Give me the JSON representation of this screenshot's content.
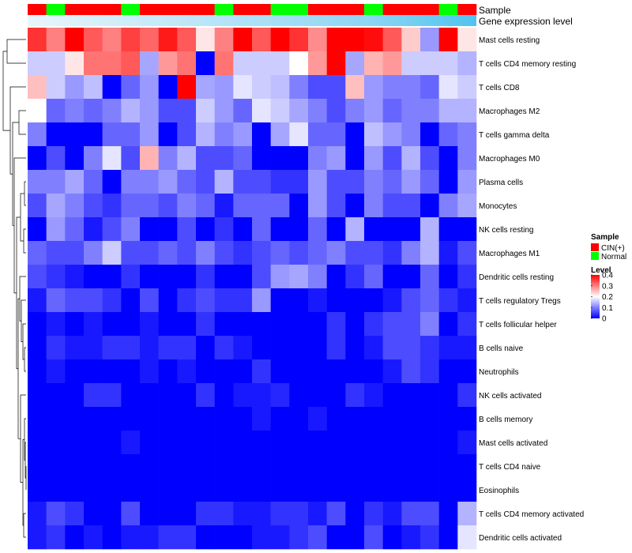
{
  "chart_data": {
    "type": "heatmap",
    "title": "",
    "annotation_rows": {
      "sample_label": "Sample",
      "expression_label": "Gene expression level",
      "sample_groups": [
        "CIN(+)",
        "Normal",
        "CIN(+)",
        "CIN(+)",
        "CIN(+)",
        "Normal",
        "CIN(+)",
        "CIN(+)",
        "CIN(+)",
        "CIN(+)",
        "Normal",
        "CIN(+)",
        "CIN(+)",
        "Normal",
        "Normal",
        "CIN(+)",
        "CIN(+)",
        "CIN(+)",
        "Normal",
        "CIN(+)",
        "CIN(+)",
        "CIN(+)",
        "Normal",
        "CIN(+)"
      ]
    },
    "rows": [
      "Mast cells resting",
      "T cells CD4 memory resting",
      "T cells CD8",
      "Macrophages M2",
      "T cells gamma delta",
      "Macrophages M0",
      "Plasma cells",
      "Monocytes",
      "NK cells resting",
      "Macrophages M1",
      "Dendritic cells resting",
      "T cells regulatory  Tregs",
      "T cells follicular helper",
      "B cells naive",
      "Neutrophils",
      "NK cells activated",
      "B cells memory",
      "Mast cells activated",
      "T cells CD4 naive",
      "Eosinophils",
      "T cells CD4 memory activated",
      "Dendritic cells activated"
    ],
    "values": [
      [
        0.36,
        0.3,
        0.4,
        0.33,
        0.3,
        0.35,
        0.32,
        0.38,
        0.33,
        0.22,
        0.3,
        0.4,
        0.33,
        0.4,
        0.36,
        0.29,
        0.4,
        0.4,
        0.39,
        0.33,
        0.24,
        0.12,
        0.4,
        0.22
      ],
      [
        0.16,
        0.16,
        0.22,
        0.31,
        0.31,
        0.33,
        0.13,
        0.28,
        0.31,
        0.0,
        0.31,
        0.16,
        0.16,
        0.16,
        0.2,
        0.28,
        0.4,
        0.13,
        0.26,
        0.28,
        0.16,
        0.16,
        0.16,
        0.14
      ],
      [
        0.25,
        0.16,
        0.12,
        0.15,
        0.0,
        0.08,
        0.12,
        0.0,
        0.4,
        0.13,
        0.12,
        0.18,
        0.16,
        0.15,
        0.1,
        0.06,
        0.06,
        0.25,
        0.12,
        0.1,
        0.1,
        0.08,
        0.18,
        0.16
      ],
      [
        0.2,
        0.08,
        0.1,
        0.08,
        0.1,
        0.14,
        0.12,
        0.06,
        0.06,
        0.16,
        0.12,
        0.08,
        0.18,
        0.16,
        0.13,
        0.1,
        0.06,
        0.1,
        0.12,
        0.08,
        0.1,
        0.1,
        0.14,
        0.14
      ],
      [
        0.1,
        0.0,
        0.0,
        0.0,
        0.08,
        0.08,
        0.12,
        0.0,
        0.06,
        0.14,
        0.1,
        0.12,
        0.0,
        0.13,
        0.18,
        0.08,
        0.08,
        0.0,
        0.15,
        0.12,
        0.1,
        0.0,
        0.08,
        0.1
      ],
      [
        0.0,
        0.06,
        0.0,
        0.1,
        0.18,
        0.06,
        0.26,
        0.1,
        0.14,
        0.06,
        0.06,
        0.08,
        0.0,
        0.0,
        0.0,
        0.1,
        0.12,
        0.0,
        0.12,
        0.06,
        0.14,
        0.06,
        0.0,
        0.1
      ],
      [
        0.1,
        0.1,
        0.13,
        0.08,
        0.0,
        0.1,
        0.1,
        0.12,
        0.08,
        0.06,
        0.14,
        0.06,
        0.06,
        0.04,
        0.04,
        0.12,
        0.06,
        0.06,
        0.1,
        0.08,
        0.12,
        0.08,
        0.0,
        0.12
      ],
      [
        0.06,
        0.13,
        0.1,
        0.06,
        0.04,
        0.08,
        0.08,
        0.06,
        0.1,
        0.08,
        0.02,
        0.08,
        0.08,
        0.08,
        0.0,
        0.12,
        0.06,
        0.0,
        0.1,
        0.06,
        0.06,
        0.0,
        0.1,
        0.13
      ],
      [
        0.0,
        0.12,
        0.08,
        0.02,
        0.06,
        0.1,
        0.0,
        0.0,
        0.06,
        0.0,
        0.04,
        0.0,
        0.08,
        0.0,
        0.0,
        0.08,
        0.0,
        0.14,
        0.0,
        0.0,
        0.0,
        0.14,
        0.0,
        0.0
      ],
      [
        0.08,
        0.06,
        0.06,
        0.1,
        0.16,
        0.06,
        0.06,
        0.08,
        0.06,
        0.1,
        0.06,
        0.04,
        0.06,
        0.08,
        0.06,
        0.08,
        0.1,
        0.06,
        0.06,
        0.04,
        0.1,
        0.14,
        0.02,
        0.06
      ],
      [
        0.06,
        0.04,
        0.02,
        0.0,
        0.0,
        0.04,
        0.0,
        0.0,
        0.0,
        0.04,
        0.0,
        0.0,
        0.06,
        0.12,
        0.13,
        0.1,
        0.0,
        0.04,
        0.08,
        0.0,
        0.0,
        0.08,
        0.0,
        0.04
      ],
      [
        0.02,
        0.08,
        0.06,
        0.06,
        0.04,
        0.0,
        0.06,
        0.0,
        0.04,
        0.06,
        0.04,
        0.04,
        0.12,
        0.0,
        0.0,
        0.02,
        0.0,
        0.0,
        0.0,
        0.02,
        0.06,
        0.08,
        0.04,
        0.02
      ],
      [
        0.0,
        0.02,
        0.0,
        0.02,
        0.0,
        0.0,
        0.02,
        0.0,
        0.0,
        0.04,
        0.0,
        0.0,
        0.0,
        0.0,
        0.0,
        0.0,
        0.04,
        0.0,
        0.04,
        0.06,
        0.06,
        0.1,
        0.0,
        0.04
      ],
      [
        0.0,
        0.04,
        0.02,
        0.02,
        0.04,
        0.04,
        0.02,
        0.04,
        0.04,
        0.0,
        0.04,
        0.02,
        0.0,
        0.0,
        0.0,
        0.0,
        0.04,
        0.0,
        0.02,
        0.06,
        0.06,
        0.04,
        0.02,
        0.02
      ],
      [
        0.0,
        0.02,
        0.0,
        0.0,
        0.0,
        0.0,
        0.02,
        0.0,
        0.02,
        0.0,
        0.0,
        0.0,
        0.04,
        0.0,
        0.0,
        0.0,
        0.0,
        0.0,
        0.0,
        0.02,
        0.06,
        0.04,
        0.0,
        0.0
      ],
      [
        0.0,
        0.0,
        0.0,
        0.04,
        0.04,
        0.0,
        0.0,
        0.0,
        0.0,
        0.04,
        0.0,
        0.02,
        0.02,
        0.03,
        0.0,
        0.0,
        0.0,
        0.04,
        0.02,
        0.0,
        0.0,
        0.0,
        0.0,
        0.04
      ],
      [
        0.0,
        0.0,
        0.0,
        0.0,
        0.0,
        0.0,
        0.0,
        0.0,
        0.0,
        0.0,
        0.0,
        0.0,
        0.02,
        0.0,
        0.0,
        0.02,
        0.0,
        0.0,
        0.0,
        0.0,
        0.0,
        0.0,
        0.0,
        0.0
      ],
      [
        0.0,
        0.0,
        0.0,
        0.0,
        0.0,
        0.02,
        0.0,
        0.0,
        0.0,
        0.0,
        0.0,
        0.0,
        0.0,
        0.0,
        0.0,
        0.0,
        0.0,
        0.0,
        0.0,
        0.0,
        0.0,
        0.0,
        0.0,
        0.02
      ],
      [
        0.0,
        0.0,
        0.0,
        0.0,
        0.0,
        0.0,
        0.0,
        0.0,
        0.0,
        0.0,
        0.0,
        0.0,
        0.0,
        0.0,
        0.0,
        0.0,
        0.0,
        0.0,
        0.0,
        0.0,
        0.0,
        0.0,
        0.0,
        0.0
      ],
      [
        0.0,
        0.0,
        0.0,
        0.0,
        0.0,
        0.0,
        0.0,
        0.0,
        0.0,
        0.0,
        0.0,
        0.0,
        0.0,
        0.0,
        0.0,
        0.0,
        0.0,
        0.0,
        0.0,
        0.0,
        0.0,
        0.0,
        0.0,
        0.0
      ],
      [
        0.02,
        0.06,
        0.04,
        0.0,
        0.0,
        0.06,
        0.0,
        0.0,
        0.0,
        0.04,
        0.04,
        0.02,
        0.02,
        0.04,
        0.04,
        0.02,
        0.06,
        0.0,
        0.04,
        0.02,
        0.06,
        0.06,
        0.0,
        0.14
      ],
      [
        0.02,
        0.04,
        0.0,
        0.02,
        0.0,
        0.02,
        0.02,
        0.04,
        0.04,
        0.0,
        0.0,
        0.0,
        0.02,
        0.02,
        0.04,
        0.06,
        0.0,
        0.0,
        0.06,
        0.0,
        0.02,
        0.04,
        0.0,
        0.18
      ]
    ],
    "legend": {
      "sample_title": "Sample",
      "sample_entries": [
        {
          "label": "CIN(+)",
          "color": "#ff0000"
        },
        {
          "label": "Normal",
          "color": "#00ff00"
        }
      ],
      "level_title": "Level",
      "level_ticks": [
        "0.4",
        "0.3",
        "0.2",
        "0.1",
        "0"
      ],
      "level_values": [
        0.4,
        0.3,
        0.2,
        0.1,
        0
      ]
    },
    "color_scale": {
      "low": "#0000ff",
      "mid": "#ffffff",
      "high": "#ff0000",
      "min": 0,
      "mid_value": 0.2,
      "max": 0.4
    },
    "annotation_colors": {
      "expression_bar": "#4fc4f0",
      "expression_bar_light": "#e8f6fc"
    }
  }
}
